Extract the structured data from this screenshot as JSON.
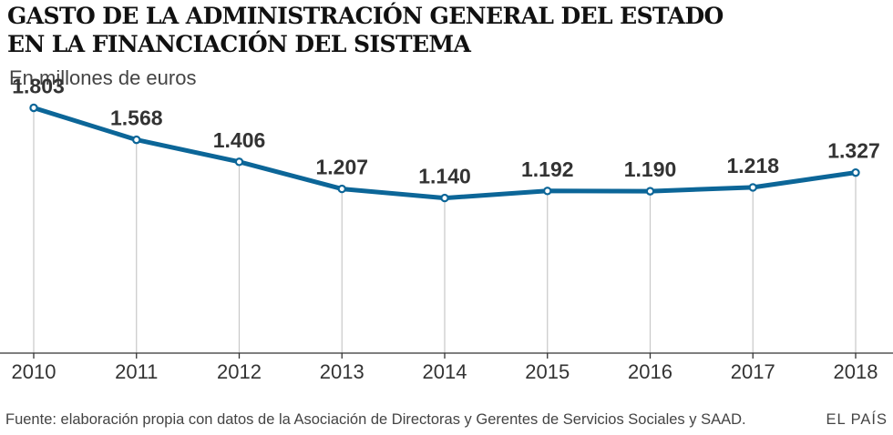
{
  "title_lines": [
    "GASTO DE LA ADMINISTRACIÓN GENERAL DEL ESTADO",
    "EN LA FINANCIACIÓN DEL SISTEMA"
  ],
  "subtitle": "En millones de euros",
  "chart_data": {
    "type": "line",
    "title": "GASTO DE LA ADMINISTRACIÓN GENERAL DEL ESTADO EN LA FINANCIACIÓN DEL SISTEMA",
    "xlabel": "",
    "ylabel": "En millones de euros",
    "categories": [
      "2010",
      "2011",
      "2012",
      "2013",
      "2014",
      "2015",
      "2016",
      "2017",
      "2018"
    ],
    "values": [
      1803,
      1568,
      1406,
      1207,
      1140,
      1192,
      1190,
      1218,
      1327
    ],
    "value_labels": [
      "1.803",
      "1.568",
      "1.406",
      "1.207",
      "1.140",
      "1.192",
      "1.190",
      "1.218",
      "1.327"
    ],
    "ylim": [
      0,
      1900
    ],
    "grid": "vertical drop lines",
    "line_color": "#0c6698"
  },
  "footer": {
    "source": "Fuente: elaboración propia con datos de la Asociación de Directoras y Gerentes de Servicios Sociales y SAAD.",
    "brand": "EL PAÍS"
  }
}
